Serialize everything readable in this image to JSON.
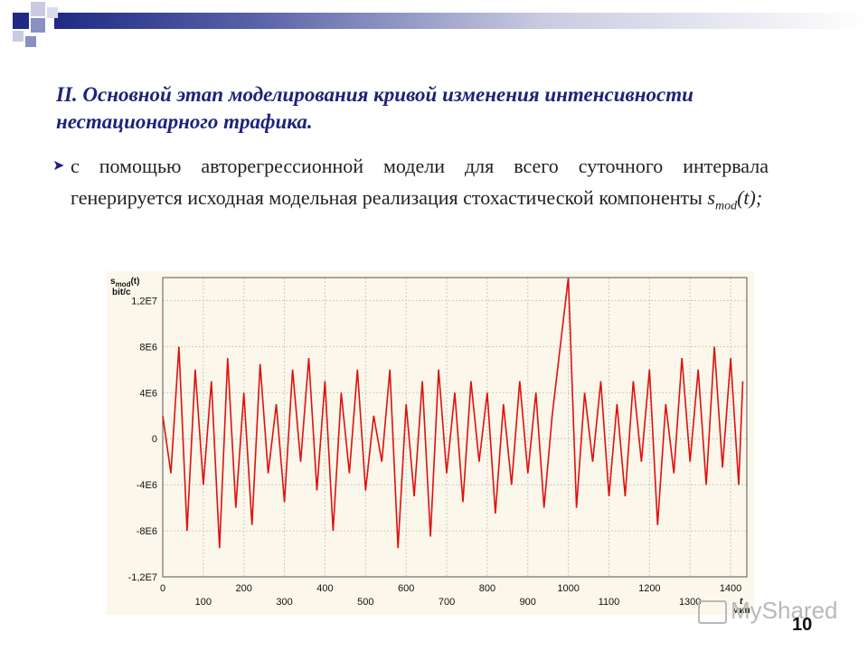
{
  "slide": {
    "title": "II. Основной этап моделирования кривой изменения интенсивности нестационарного трафика.",
    "bullet_text": "с помощью авторегрессионной модели для всего суточного интервала генерируется исходная модельная реализация стохастической компоненты ",
    "bullet_formula_base": "s",
    "bullet_formula_sub": "mod",
    "bullet_formula_tail": "(t);",
    "page_number": "10",
    "watermark": "MyShared"
  },
  "colors": {
    "title": "#1c237a",
    "series": "#e01010",
    "chart_bg": "#fbf7ea"
  },
  "chart_data": {
    "type": "line",
    "ylabel_base": "s",
    "ylabel_sub": "mod",
    "ylabel_tail": "(t)",
    "ylabel_unit": "bit/c",
    "xlabel": "t",
    "xlabel_unit": "мин",
    "xlim": [
      0,
      1440
    ],
    "ylim": [
      -12000000,
      14000000
    ],
    "y_ticks": [
      {
        "value": 12000000,
        "label": "1,2E7"
      },
      {
        "value": 8000000,
        "label": "8E6"
      },
      {
        "value": 4000000,
        "label": "4E6"
      },
      {
        "value": 0,
        "label": "0"
      },
      {
        "value": -4000000,
        "label": "-4E6"
      },
      {
        "value": -8000000,
        "label": "-8E6"
      },
      {
        "value": -12000000,
        "label": "-1,2E7"
      }
    ],
    "x_ticks_top": [
      0,
      200,
      400,
      600,
      800,
      1000,
      1200,
      1400
    ],
    "x_ticks_bottom": [
      100,
      300,
      500,
      700,
      900,
      1100,
      1300
    ],
    "grid": true,
    "series": [
      {
        "x": [
          0,
          20,
          40,
          60,
          80,
          100,
          120,
          140,
          160,
          180,
          200,
          220,
          240,
          260,
          280,
          300,
          320,
          340,
          360,
          380,
          400,
          420,
          440,
          460,
          480,
          500,
          520,
          540,
          560,
          580,
          600,
          620,
          640,
          660,
          680,
          700,
          720,
          740,
          760,
          780,
          800,
          820,
          840,
          860,
          880,
          900,
          920,
          940,
          960,
          980,
          1000,
          1010,
          1020,
          1040,
          1060,
          1080,
          1100,
          1120,
          1140,
          1160,
          1180,
          1200,
          1220,
          1240,
          1260,
          1280,
          1300,
          1320,
          1340,
          1360,
          1380,
          1400,
          1420,
          1430
        ],
        "y": [
          2000000,
          -3000000,
          8000000,
          -8000000,
          6000000,
          -4000000,
          5000000,
          -9500000,
          7000000,
          -6000000,
          4000000,
          -7500000,
          6500000,
          -3000000,
          3000000,
          -5500000,
          6000000,
          -2000000,
          7000000,
          -4500000,
          5000000,
          -8000000,
          4000000,
          -3000000,
          6000000,
          -4500000,
          2000000,
          -2000000,
          6000000,
          -9500000,
          3000000,
          -5000000,
          5000000,
          -8500000,
          6000000,
          -3000000,
          4000000,
          -5500000,
          5000000,
          -2000000,
          4000000,
          -6500000,
          3000000,
          -4000000,
          5000000,
          -3000000,
          4000000,
          -6000000,
          2000000,
          8000000,
          14000000,
          4000000,
          -6000000,
          4000000,
          -2000000,
          5000000,
          -5000000,
          3000000,
          -5000000,
          5000000,
          -2000000,
          6000000,
          -7500000,
          3000000,
          -3000000,
          7000000,
          -2000000,
          6000000,
          -4000000,
          8000000,
          -2500000,
          7000000,
          -4000000,
          5000000
        ]
      }
    ]
  }
}
